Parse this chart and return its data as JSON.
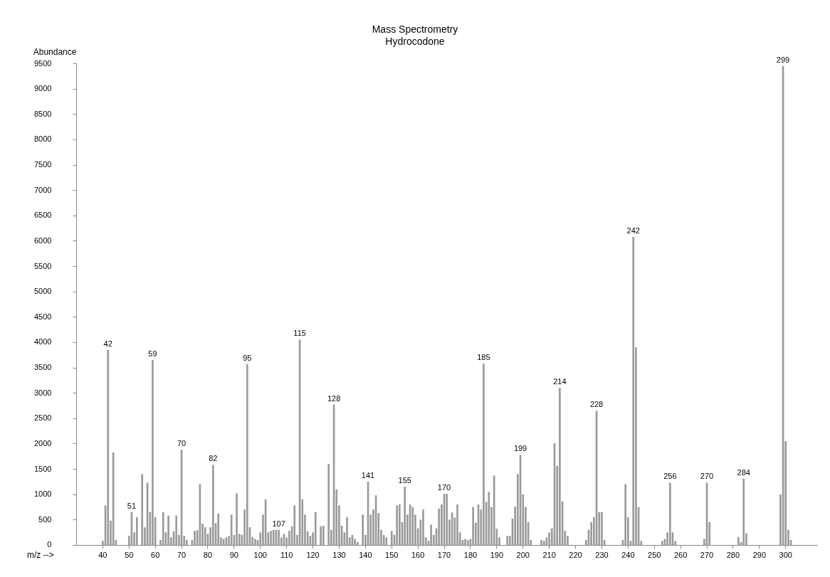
{
  "chart_data": {
    "type": "bar",
    "title": "Mass Spectrometry",
    "subtitle": "Hydrocodone",
    "xlabel": "m/z -->",
    "ylabel": "Abundance",
    "color": "#9a9a9a",
    "x": [
      40,
      41,
      42,
      43,
      44,
      45,
      50,
      51,
      52,
      53,
      55,
      56,
      57,
      58,
      59,
      60,
      62,
      63,
      64,
      65,
      66,
      67,
      68,
      69,
      70,
      71,
      72,
      74,
      75,
      76,
      77,
      78,
      79,
      80,
      81,
      82,
      83,
      84,
      85,
      86,
      87,
      88,
      89,
      90,
      91,
      92,
      93,
      94,
      95,
      96,
      97,
      98,
      99,
      100,
      101,
      102,
      103,
      104,
      105,
      106,
      107,
      108,
      109,
      110,
      111,
      112,
      113,
      114,
      115,
      116,
      117,
      118,
      119,
      120,
      121,
      123,
      124,
      126,
      127,
      128,
      129,
      130,
      131,
      132,
      133,
      134,
      135,
      136,
      137,
      139,
      140,
      141,
      142,
      143,
      144,
      145,
      146,
      147,
      148,
      150,
      151,
      152,
      153,
      154,
      155,
      156,
      157,
      158,
      159,
      160,
      161,
      162,
      163,
      164,
      165,
      166,
      167,
      168,
      169,
      170,
      171,
      172,
      173,
      174,
      175,
      176,
      177,
      178,
      179,
      180,
      181,
      182,
      183,
      184,
      185,
      186,
      187,
      188,
      189,
      190,
      191,
      194,
      195,
      196,
      197,
      198,
      199,
      200,
      201,
      202,
      203,
      207,
      208,
      209,
      210,
      211,
      212,
      213,
      214,
      215,
      216,
      217,
      224,
      225,
      226,
      227,
      228,
      229,
      230,
      231,
      238,
      239,
      240,
      241,
      242,
      243,
      244,
      245,
      253,
      254,
      255,
      256,
      257,
      258,
      269,
      270,
      271,
      282,
      283,
      284,
      285,
      298,
      299,
      300,
      301,
      302
    ],
    "values": [
      80,
      780,
      3850,
      480,
      1830,
      100,
      180,
      650,
      250,
      550,
      1400,
      350,
      1230,
      650,
      3650,
      550,
      100,
      650,
      250,
      580,
      150,
      270,
      580,
      200,
      1880,
      180,
      100,
      100,
      280,
      290,
      1200,
      420,
      350,
      220,
      350,
      1580,
      430,
      620,
      150,
      120,
      150,
      180,
      600,
      200,
      1020,
      220,
      200,
      700,
      3570,
      350,
      160,
      120,
      100,
      250,
      600,
      900,
      250,
      280,
      300,
      300,
      300,
      150,
      220,
      150,
      280,
      370,
      780,
      200,
      4050,
      900,
      600,
      270,
      180,
      250,
      650,
      370,
      380,
      1600,
      300,
      2770,
      1100,
      780,
      380,
      250,
      550,
      150,
      200,
      120,
      60,
      600,
      200,
      1250,
      600,
      700,
      980,
      630,
      300,
      200,
      150,
      280,
      200,
      780,
      800,
      450,
      1150,
      600,
      800,
      750,
      600,
      330,
      500,
      700,
      150,
      80,
      400,
      200,
      330,
      720,
      800,
      1010,
      1010,
      500,
      640,
      540,
      800,
      250,
      100,
      120,
      100,
      120,
      750,
      440,
      800,
      700,
      3580,
      850,
      1050,
      750,
      1370,
      320,
      150,
      180,
      180,
      520,
      760,
      1400,
      1780,
      1000,
      750,
      450,
      100,
      100,
      80,
      150,
      250,
      330,
      2010,
      1560,
      3100,
      860,
      280,
      180,
      100,
      300,
      450,
      550,
      2650,
      650,
      650,
      100,
      100,
      1200,
      550,
      80,
      6080,
      3900,
      750,
      80,
      80,
      120,
      250,
      1230,
      250,
      80,
      120,
      1230,
      450,
      160,
      60,
      1310,
      230,
      1000,
      9450,
      2050,
      300,
      100
    ],
    "xlim": [
      30,
      312
    ],
    "xticks": [
      40,
      50,
      60,
      70,
      80,
      90,
      100,
      110,
      120,
      130,
      140,
      150,
      160,
      170,
      180,
      190,
      200,
      210,
      220,
      230,
      240,
      250,
      260,
      270,
      280,
      290,
      300
    ],
    "ylim": [
      0,
      9500
    ],
    "yticks": [
      0,
      500,
      1000,
      1500,
      2000,
      2500,
      3000,
      3500,
      4000,
      4500,
      5000,
      5500,
      6000,
      6500,
      7000,
      7500,
      8000,
      8500,
      9000,
      9500
    ],
    "grid": false,
    "legend": false,
    "annotations": [
      {
        "text": "42",
        "x": 42,
        "y": 3850
      },
      {
        "text": "51",
        "x": 51,
        "y": 650
      },
      {
        "text": "59",
        "x": 59,
        "y": 3650
      },
      {
        "text": "70",
        "x": 70,
        "y": 1880
      },
      {
        "text": "82",
        "x": 82,
        "y": 1580
      },
      {
        "text": "95",
        "x": 95,
        "y": 3570
      },
      {
        "text": "107",
        "x": 107,
        "y": 300
      },
      {
        "text": "115",
        "x": 115,
        "y": 4050
      },
      {
        "text": "128",
        "x": 128,
        "y": 2770
      },
      {
        "text": "141",
        "x": 141,
        "y": 1250
      },
      {
        "text": "155",
        "x": 155,
        "y": 1150
      },
      {
        "text": "170",
        "x": 170,
        "y": 1010
      },
      {
        "text": "185",
        "x": 185,
        "y": 3580
      },
      {
        "text": "199",
        "x": 199,
        "y": 1780
      },
      {
        "text": "214",
        "x": 214,
        "y": 3100
      },
      {
        "text": "228",
        "x": 228,
        "y": 2650
      },
      {
        "text": "242",
        "x": 242,
        "y": 6080
      },
      {
        "text": "256",
        "x": 256,
        "y": 1230
      },
      {
        "text": "270",
        "x": 270,
        "y": 1230
      },
      {
        "text": "284",
        "x": 284,
        "y": 1310
      },
      {
        "text": "299",
        "x": 299,
        "y": 9450
      }
    ]
  }
}
